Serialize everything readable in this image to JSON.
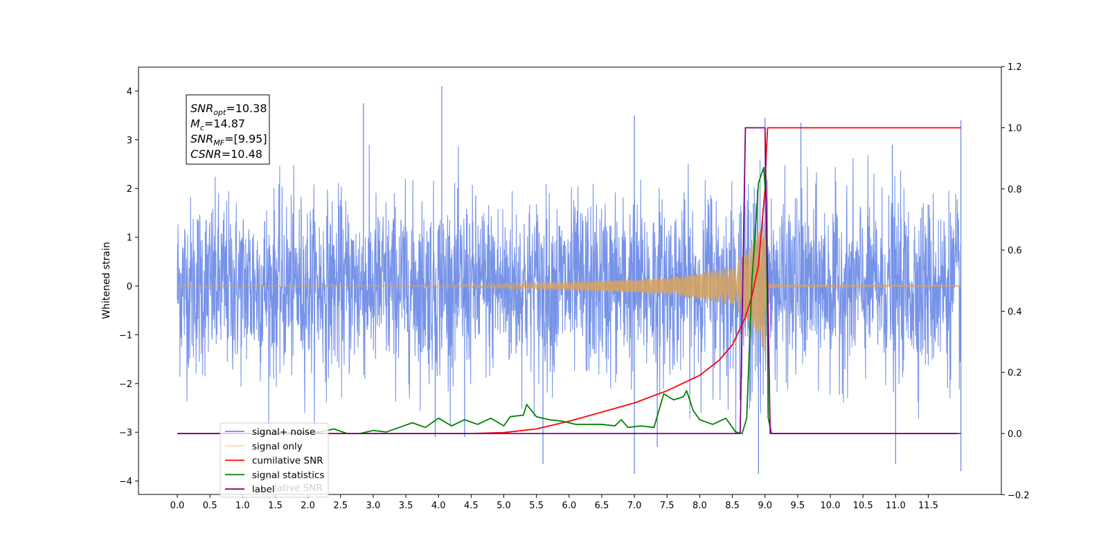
{
  "chart_data": {
    "type": "line",
    "x": {
      "ticks": [
        "0.0",
        "0.5",
        "1.0",
        "1.5",
        "2.0",
        "2.5",
        "3.0",
        "3.5",
        "4.0",
        "4.5",
        "5.0",
        "5.5",
        "6.0",
        "6.5",
        "7.0",
        "7.5",
        "8.0",
        "8.5",
        "9.0",
        "9.5",
        "10.0",
        "10.5",
        "11.0",
        "11.5"
      ],
      "range": [
        -0.6,
        12.6
      ]
    },
    "y_left": {
      "label": "Whitened strain",
      "ticks": [
        "4",
        "3",
        "2",
        "1",
        "0",
        "−1",
        "−2",
        "−3",
        "−4"
      ],
      "range": [
        -4.3,
        4.5
      ]
    },
    "y_right": {
      "ticks": [
        "1.2",
        "1.0",
        "0.8",
        "0.6",
        "0.4",
        "0.2",
        "0.0",
        "−0.2"
      ],
      "range": [
        -0.2,
        1.2
      ]
    },
    "annotation": {
      "lines": [
        {
          "base": "SNR",
          "sub": "opt",
          "value": "=10.38"
        },
        {
          "base": "M",
          "sub": "c",
          "value": "=14.87"
        },
        {
          "base": "SNR",
          "sub": "MF",
          "value": "=[9.95]"
        },
        {
          "base": "CSNR",
          "sub": "",
          "value": "=10.48"
        }
      ]
    },
    "legend": {
      "placement": "lower-left",
      "entries": [
        "signal+ noise",
        "signal only",
        "cumilative SNR",
        "signal statistics",
        "label"
      ],
      "ghost_text": "lative SNR"
    },
    "series": [
      {
        "name": "signal+ noise",
        "axis": "left",
        "color": "#6b8ae6",
        "kind": "noise",
        "x_range": [
          0,
          12.0
        ],
        "noise_sigma": 0.9,
        "spikes": [
          [
            4.05,
            4.1
          ],
          [
            2.85,
            3.75
          ],
          [
            9.55,
            3.35
          ],
          [
            9.0,
            3.45
          ],
          [
            7.0,
            3.5
          ],
          [
            12.0,
            3.4
          ],
          [
            8.9,
            -3.85
          ],
          [
            7.0,
            -3.85
          ],
          [
            5.6,
            -3.65
          ],
          [
            11.0,
            -3.65
          ],
          [
            12.0,
            -3.8
          ],
          [
            10.95,
            2.9
          ],
          [
            4.4,
            -3.1
          ],
          [
            3.95,
            -3.1
          ],
          [
            7.35,
            -3.3
          ]
        ]
      },
      {
        "name": "signal only",
        "axis": "left",
        "color": "#d9a35a",
        "kind": "chirp",
        "merger": 9.0,
        "envelope": [
          [
            0,
            0.01
          ],
          [
            4.0,
            0.02
          ],
          [
            5.0,
            0.05
          ],
          [
            6.0,
            0.08
          ],
          [
            7.0,
            0.13
          ],
          [
            7.5,
            0.17
          ],
          [
            8.0,
            0.26
          ],
          [
            8.3,
            0.34
          ],
          [
            8.5,
            0.45
          ],
          [
            8.7,
            0.65
          ],
          [
            8.85,
            0.95
          ],
          [
            8.95,
            1.2
          ],
          [
            9.0,
            1.35
          ],
          [
            9.02,
            0.2
          ],
          [
            9.05,
            0.05
          ],
          [
            9.2,
            0.02
          ],
          [
            12.0,
            0.01
          ]
        ]
      },
      {
        "name": "cumilative SNR",
        "axis": "right",
        "color": "#ff0000",
        "points": [
          [
            0,
            0
          ],
          [
            4.5,
            0.0
          ],
          [
            5.0,
            0.003
          ],
          [
            5.5,
            0.015
          ],
          [
            6.0,
            0.04
          ],
          [
            6.5,
            0.07
          ],
          [
            7.0,
            0.1
          ],
          [
            7.5,
            0.14
          ],
          [
            8.0,
            0.19
          ],
          [
            8.3,
            0.24
          ],
          [
            8.5,
            0.29
          ],
          [
            8.7,
            0.38
          ],
          [
            8.8,
            0.45
          ],
          [
            8.9,
            0.55
          ],
          [
            9.0,
            0.8
          ],
          [
            9.02,
            0.92
          ],
          [
            9.04,
            1.0
          ],
          [
            12.0,
            1.0
          ]
        ]
      },
      {
        "name": "signal statistics",
        "axis": "right",
        "color": "#008000",
        "points": [
          [
            0,
            0
          ],
          [
            1.5,
            0.0
          ],
          [
            2.2,
            0.005
          ],
          [
            2.4,
            0.015
          ],
          [
            2.6,
            0.0
          ],
          [
            2.8,
            0.0
          ],
          [
            3.0,
            0.01
          ],
          [
            3.2,
            0.005
          ],
          [
            3.4,
            0.02
          ],
          [
            3.6,
            0.035
          ],
          [
            3.8,
            0.02
          ],
          [
            4.0,
            0.05
          ],
          [
            4.2,
            0.025
          ],
          [
            4.4,
            0.045
          ],
          [
            4.6,
            0.03
          ],
          [
            4.8,
            0.05
          ],
          [
            5.0,
            0.025
          ],
          [
            5.1,
            0.055
          ],
          [
            5.3,
            0.06
          ],
          [
            5.35,
            0.095
          ],
          [
            5.5,
            0.055
          ],
          [
            5.7,
            0.045
          ],
          [
            5.9,
            0.04
          ],
          [
            6.1,
            0.03
          ],
          [
            6.3,
            0.03
          ],
          [
            6.5,
            0.03
          ],
          [
            6.7,
            0.025
          ],
          [
            6.8,
            0.045
          ],
          [
            6.9,
            0.02
          ],
          [
            7.1,
            0.025
          ],
          [
            7.3,
            0.02
          ],
          [
            7.45,
            0.13
          ],
          [
            7.6,
            0.11
          ],
          [
            7.75,
            0.12
          ],
          [
            7.8,
            0.14
          ],
          [
            7.9,
            0.075
          ],
          [
            8.0,
            0.045
          ],
          [
            8.2,
            0.03
          ],
          [
            8.4,
            0.05
          ],
          [
            8.55,
            0.005
          ],
          [
            8.65,
            0.0
          ],
          [
            8.72,
            0.05
          ],
          [
            8.8,
            0.5
          ],
          [
            8.9,
            0.82
          ],
          [
            8.98,
            0.87
          ],
          [
            9.02,
            0.75
          ],
          [
            9.05,
            0.05
          ],
          [
            9.1,
            0.0
          ],
          [
            12.0,
            0.0
          ]
        ]
      },
      {
        "name": "label",
        "axis": "right",
        "color": "#800080",
        "points": [
          [
            0,
            0
          ],
          [
            8.62,
            0
          ],
          [
            8.7,
            1.0
          ],
          [
            9.0,
            1.0
          ],
          [
            9.08,
            0
          ],
          [
            11.95,
            0
          ]
        ]
      }
    ],
    "grid": false
  }
}
